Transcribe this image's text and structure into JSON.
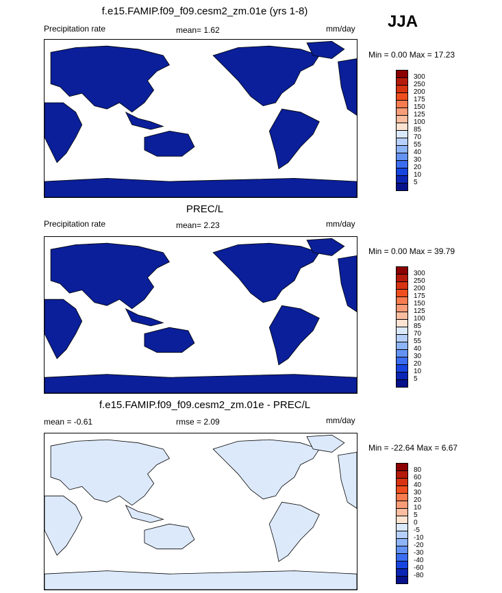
{
  "season": "JJA",
  "panels": [
    {
      "title": "f.e15.FAMIP.f09_f09.cesm2_zm.01e (yrs 1-8)",
      "left_label": "Precipitation rate",
      "mean_text": "mean=   1.62",
      "units": "mm/day",
      "minmax": "Min =   0.00 Max =  17.23",
      "fill": "#0a1f99",
      "colorbar": {
        "labels": [
          "300",
          "250",
          "200",
          "175",
          "150",
          "125",
          "100",
          "85",
          "70",
          "55",
          "40",
          "30",
          "20",
          "10",
          "5"
        ],
        "colors": [
          "#8b0000",
          "#b51b0a",
          "#d83412",
          "#ef4f1e",
          "#f77c4f",
          "#f99c78",
          "#fbbd9f",
          "#fde3d2",
          "#dbe9fc",
          "#b7d0fb",
          "#8eb4f8",
          "#6392f2",
          "#3b6df0",
          "#1745e0",
          "#0b26b5",
          "#07118a"
        ]
      }
    },
    {
      "title": "PREC/L",
      "left_label": "Precipitation rate",
      "mean_text": "mean=   2.23",
      "units": "mm/day",
      "minmax": "Min =   0.00 Max =  39.79",
      "fill": "#0a1f99",
      "colorbar": {
        "labels": [
          "300",
          "250",
          "200",
          "175",
          "150",
          "125",
          "100",
          "85",
          "70",
          "55",
          "40",
          "30",
          "20",
          "10",
          "5"
        ],
        "colors": [
          "#8b0000",
          "#b51b0a",
          "#d83412",
          "#ef4f1e",
          "#f77c4f",
          "#f99c78",
          "#fbbd9f",
          "#fde3d2",
          "#dbe9fc",
          "#b7d0fb",
          "#8eb4f8",
          "#6392f2",
          "#3b6df0",
          "#1745e0",
          "#0b26b5",
          "#07118a"
        ]
      }
    },
    {
      "title": "f.e15.FAMIP.f09_f09.cesm2_zm.01e - PREC/L",
      "left_label": "mean =  -0.61",
      "mean_text": "rmse =   2.09",
      "units": "mm/day",
      "minmax": "Min = -22.64 Max =   6.67",
      "fill": "#dce9fb",
      "colorbar": {
        "labels": [
          "80",
          "60",
          "40",
          "30",
          "20",
          "10",
          "5",
          "0",
          "-5",
          "-10",
          "-20",
          "-30",
          "-40",
          "-60",
          "-80"
        ],
        "colors": [
          "#8b0000",
          "#b51b0a",
          "#d83412",
          "#ef4f1e",
          "#f77c4f",
          "#f99c78",
          "#fbbd9f",
          "#fde3d2",
          "#dbe9fc",
          "#b7d0fb",
          "#8eb4f8",
          "#6392f2",
          "#3b6df0",
          "#1745e0",
          "#0b26b5",
          "#07118a"
        ]
      }
    }
  ]
}
